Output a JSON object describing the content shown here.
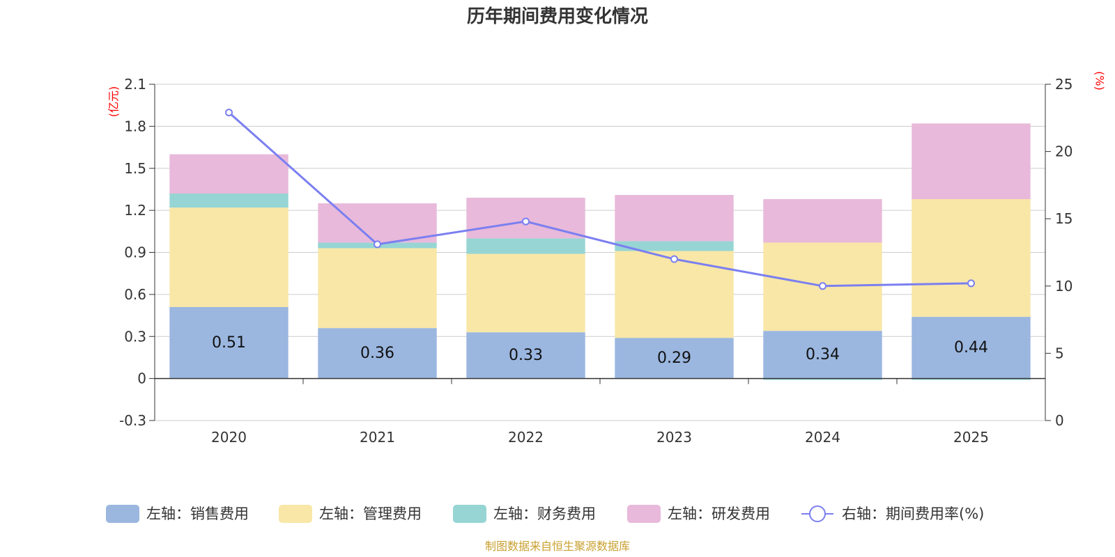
{
  "chart_data": {
    "type": "bar",
    "stacked": true,
    "title": "历年期间费用变化情况",
    "categories": [
      "2020",
      "2021",
      "2022",
      "2023",
      "2024",
      "2025"
    ],
    "left_axis": {
      "unit_label": "(亿元)",
      "ylim": [
        -0.3,
        2.1
      ],
      "ticks": [
        -0.3,
        0,
        0.3,
        0.6,
        0.9,
        1.2,
        1.5,
        1.8,
        2.1
      ],
      "tick_labels": [
        "-0.3",
        "0",
        "0.3",
        "0.6",
        "0.9",
        "1.2",
        "1.5",
        "1.8",
        "2.1"
      ]
    },
    "right_axis": {
      "unit_label": "(%)",
      "ylim": [
        0,
        25
      ],
      "ticks": [
        0,
        5,
        10,
        15,
        20,
        25
      ],
      "tick_labels": [
        "0",
        "5",
        "10",
        "15",
        "20",
        "25"
      ]
    },
    "series": [
      {
        "name": "左轴：销售费用",
        "axis": "left",
        "color": "#9bb7e0",
        "values": [
          0.51,
          0.36,
          0.33,
          0.29,
          0.34,
          0.44
        ],
        "labels": [
          "0.51",
          "0.36",
          "0.33",
          "0.29",
          "0.34",
          "0.44"
        ]
      },
      {
        "name": "左轴：管理费用",
        "axis": "left",
        "color": "#f8e7a7",
        "values": [
          0.71,
          0.57,
          0.56,
          0.62,
          0.63,
          0.84
        ]
      },
      {
        "name": "左轴：财务费用",
        "axis": "left",
        "color": "#96d5d4",
        "values": [
          0.1,
          0.04,
          0.11,
          0.07,
          -0.01,
          -0.01
        ]
      },
      {
        "name": "左轴：研发费用",
        "axis": "left",
        "color": "#e8b9da",
        "values": [
          0.28,
          0.28,
          0.29,
          0.33,
          0.31,
          0.54
        ]
      },
      {
        "name": "右轴：期间费用率(%)",
        "axis": "right",
        "type": "line",
        "color": "#7b7ff0",
        "values": [
          22.9,
          13.1,
          14.8,
          12.0,
          10.0,
          10.2
        ]
      }
    ]
  },
  "source": "制图数据来自恒生聚源数据库"
}
